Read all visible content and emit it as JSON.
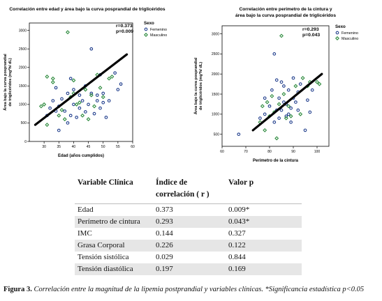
{
  "chart_data": [
    {
      "type": "scatter",
      "title": "Correlación entre edad y área bajo la curva posprandial de triglicéridos",
      "xlabel": "Edad (años cumplidos)",
      "ylabel_lines": [
        "Área bajo la curva posprandial",
        "de triglicéridos (mg*h/ dL)"
      ],
      "xlim": [
        25,
        60
      ],
      "ylim": [
        0,
        3200
      ],
      "xticks": [
        30,
        35,
        40,
        45,
        50,
        55,
        60
      ],
      "yticks": [
        0,
        500,
        1000,
        1500,
        2000,
        2500,
        3000
      ],
      "annotation": [
        "r=0.373",
        "p=0.009"
      ],
      "legend_title": "Sexo",
      "legend": "top-right",
      "series": [
        {
          "name": "Femenino",
          "color": "#1f3d8c",
          "marker": "circle",
          "points": [
            [
              31,
              700
            ],
            [
              32,
              900
            ],
            [
              33,
              1100
            ],
            [
              34,
              1450
            ],
            [
              34,
              820
            ],
            [
              35,
              300
            ],
            [
              35,
              950
            ],
            [
              36,
              1150
            ],
            [
              37,
              820
            ],
            [
              38,
              1300
            ],
            [
              38,
              500
            ],
            [
              39,
              700
            ],
            [
              39,
              1700
            ],
            [
              40,
              1000
            ],
            [
              40,
              1400
            ],
            [
              41,
              650
            ],
            [
              42,
              1250
            ],
            [
              42,
              900
            ],
            [
              43,
              1100
            ],
            [
              44,
              800
            ],
            [
              44,
              1500
            ],
            [
              45,
              1000
            ],
            [
              46,
              1300
            ],
            [
              46,
              2500
            ],
            [
              47,
              750
            ],
            [
              48,
              1250
            ],
            [
              48,
              1100
            ],
            [
              49,
              900
            ],
            [
              49,
              1800
            ],
            [
              50,
              1050
            ],
            [
              50,
              1300
            ],
            [
              51,
              650
            ],
            [
              52,
              1100
            ],
            [
              54,
              1850
            ],
            [
              55,
              1400
            ],
            [
              56,
              1550
            ]
          ]
        },
        {
          "name": "Masculino",
          "color": "#2e8b3e",
          "marker": "diamond",
          "points": [
            [
              29,
              950
            ],
            [
              30,
              1000
            ],
            [
              31,
              450
            ],
            [
              31,
              1750
            ],
            [
              33,
              1600
            ],
            [
              33,
              1700
            ],
            [
              35,
              700
            ],
            [
              36,
              850
            ],
            [
              37,
              600
            ],
            [
              38,
              2950
            ],
            [
              39,
              1200
            ],
            [
              40,
              1650
            ],
            [
              40,
              1300
            ],
            [
              41,
              1000
            ],
            [
              42,
              1050
            ],
            [
              43,
              700
            ],
            [
              44,
              1400
            ],
            [
              45,
              600
            ],
            [
              46,
              1250
            ],
            [
              47,
              950
            ],
            [
              48,
              1800
            ],
            [
              49,
              1450
            ],
            [
              50,
              1200
            ],
            [
              52,
              1700
            ],
            [
              53,
              1750
            ]
          ]
        }
      ],
      "fit_line": [
        [
          27,
          450
        ],
        [
          58,
          2350
        ]
      ]
    },
    {
      "type": "scatter",
      "title_lines": [
        "Correlación entre perímetro de la cintura y",
        "área bajo la curva posprandial de triglicéridos"
      ],
      "xlabel": "Perímetro de la cintura",
      "ylabel_lines": [
        "Área bajo la curva posprandial",
        "de triglicéridos (mg*h/ dL)"
      ],
      "xlim": [
        60,
        105
      ],
      "ylim": [
        200,
        3200
      ],
      "xticks": [
        60,
        70,
        80,
        90,
        100
      ],
      "yticks": [
        500,
        1000,
        1500,
        2000,
        2500,
        3000
      ],
      "annotation": [
        "r=0.293",
        "p=0.043"
      ],
      "legend_title": "Sexo",
      "legend": "top-right",
      "series": [
        {
          "name": "Femenino",
          "color": "#1f3d8c",
          "marker": "circle",
          "points": [
            [
              67,
              500
            ],
            [
              76,
              900
            ],
            [
              78,
              1000
            ],
            [
              78,
              1400
            ],
            [
              80,
              1200
            ],
            [
              81,
              1600
            ],
            [
              82,
              800
            ],
            [
              82,
              2500
            ],
            [
              83,
              1100
            ],
            [
              83,
              1850
            ],
            [
              84,
              1400
            ],
            [
              84,
              900
            ],
            [
              85,
              1100
            ],
            [
              85,
              1800
            ],
            [
              86,
              1300
            ],
            [
              86,
              1700
            ],
            [
              87,
              950
            ],
            [
              87,
              1250
            ],
            [
              88,
              1000
            ],
            [
              88,
              1600
            ],
            [
              89,
              1150
            ],
            [
              89,
              800
            ],
            [
              90,
              1400
            ],
            [
              90,
              1900
            ],
            [
              91,
              1300
            ],
            [
              92,
              1550
            ],
            [
              92,
              1100
            ],
            [
              93,
              1750
            ],
            [
              95,
              600
            ],
            [
              96,
              1350
            ],
            [
              97,
              1050
            ],
            [
              98,
              1600
            ]
          ]
        },
        {
          "name": "Masculino",
          "color": "#2e8b3e",
          "marker": "diamond",
          "points": [
            [
              76,
              800
            ],
            [
              77,
              1200
            ],
            [
              78,
              600
            ],
            [
              79,
              1300
            ],
            [
              80,
              950
            ],
            [
              81,
              1450
            ],
            [
              82,
              1050
            ],
            [
              83,
              400
            ],
            [
              84,
              1250
            ],
            [
              85,
              2950
            ],
            [
              86,
              1500
            ],
            [
              87,
              900
            ],
            [
              88,
              1200
            ],
            [
              89,
              950
            ],
            [
              91,
              1700
            ],
            [
              93,
              1000
            ],
            [
              94,
              1900
            ],
            [
              96,
              1700
            ],
            [
              97,
              1800
            ],
            [
              100,
              1800
            ],
            [
              101,
              1750
            ]
          ]
        }
      ],
      "fit_line": [
        [
          73,
          600
        ],
        [
          102,
          2000
        ]
      ]
    }
  ],
  "table": {
    "headers": [
      "Variable  Clínica",
      "Índice de correlación ( r )",
      "Valor p"
    ],
    "rows": [
      [
        "Edad",
        "0.373",
        "0.009*"
      ],
      [
        "Perímetro de cintura",
        "0.293",
        "0.043*"
      ],
      [
        "IMC",
        "0.144",
        "0.327"
      ],
      [
        "Grasa Corporal",
        "0.226",
        "0.122"
      ],
      [
        "Tensión sistólica",
        "0.029",
        "0.844"
      ],
      [
        "Tensión diastólica",
        "0.197",
        "0.169"
      ]
    ]
  },
  "caption": {
    "label": "Figura 3.",
    "text": " Correlación entre la magnitud de la lipemia postprandial y variables clínicas. *Significancia estadística p<0.05"
  }
}
